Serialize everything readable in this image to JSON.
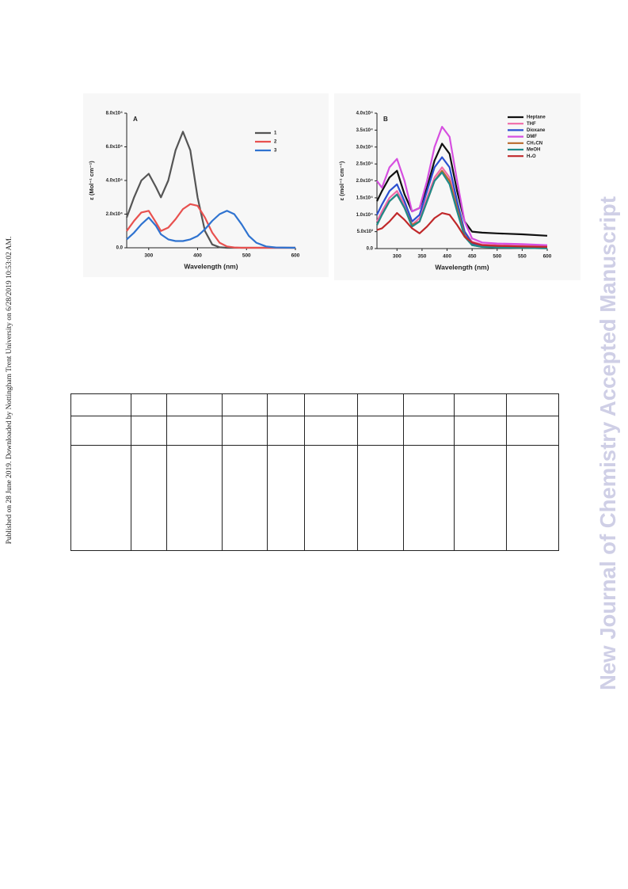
{
  "side_note": "Published on 28 June 2019. Downloaded by Nottingham Trent University on 6/28/2019 10:53:02 AM.",
  "watermark": "New Journal of Chemistry Accepted Manuscript",
  "chart_data": [
    {
      "type": "line",
      "panel_label": "A",
      "x_label": "Wavelength (nm)",
      "y_label": "ε (Mol⁻¹ cm⁻¹)",
      "x": [
        255,
        270,
        285,
        300,
        315,
        325,
        340,
        355,
        370,
        385,
        400,
        415,
        430,
        445,
        460,
        475,
        490,
        505,
        520,
        540,
        560,
        600
      ],
      "xlim": [
        255,
        600
      ],
      "xticks": [
        300,
        400,
        500,
        600
      ],
      "ylim": [
        0,
        80000
      ],
      "yticks": [
        {
          "value": 0,
          "label": "0.0"
        },
        {
          "value": 20000,
          "label": "2.0x10⁴"
        },
        {
          "value": 40000,
          "label": "4.0x10⁴"
        },
        {
          "value": 60000,
          "label": "6.0x10⁴"
        },
        {
          "value": 80000,
          "label": "8.0x10⁴"
        }
      ],
      "legend": "upper right",
      "series": [
        {
          "name": "1",
          "color": "#555555",
          "values": [
            18000,
            30000,
            40000,
            44000,
            36000,
            30000,
            40000,
            58000,
            69000,
            58000,
            30000,
            10000,
            2000,
            300,
            0,
            0,
            0,
            0,
            0,
            0,
            0,
            0
          ]
        },
        {
          "name": "2",
          "color": "#e8514f",
          "values": [
            10000,
            16000,
            21000,
            22000,
            15000,
            10000,
            12000,
            17000,
            23000,
            26000,
            25000,
            18000,
            9000,
            3000,
            800,
            200,
            0,
            0,
            0,
            0,
            0,
            0
          ]
        },
        {
          "name": "3",
          "color": "#2f73d0",
          "values": [
            5000,
            9000,
            14000,
            18000,
            13000,
            8000,
            5000,
            4000,
            4000,
            5000,
            7000,
            11000,
            16000,
            20000,
            22000,
            20000,
            14000,
            7000,
            3000,
            800,
            200,
            0
          ]
        }
      ]
    },
    {
      "type": "line",
      "panel_label": "B",
      "x_label": "Wavelength (nm)",
      "y_label": "ε (mol⁻¹ cm⁻¹)",
      "x": [
        260,
        270,
        285,
        300,
        315,
        330,
        345,
        360,
        375,
        390,
        405,
        420,
        435,
        450,
        470,
        500,
        550,
        600
      ],
      "xlim": [
        260,
        600
      ],
      "xticks": [
        300,
        350,
        400,
        450,
        500,
        550,
        600
      ],
      "ylim": [
        0,
        40000
      ],
      "yticks": [
        {
          "value": 0,
          "label": "0.0"
        },
        {
          "value": 5000,
          "label": "5.0x10³"
        },
        {
          "value": 10000,
          "label": "1.0x10⁴"
        },
        {
          "value": 15000,
          "label": "1.5x10⁴"
        },
        {
          "value": 20000,
          "label": "2.0x10⁴"
        },
        {
          "value": 25000,
          "label": "2.5x10⁴"
        },
        {
          "value": 30000,
          "label": "3.0x10⁴"
        },
        {
          "value": 35000,
          "label": "3.5x10⁴"
        },
        {
          "value": 40000,
          "label": "4.0x10⁴"
        }
      ],
      "legend": "upper right",
      "series": [
        {
          "name": "Heptane",
          "color": "#111111",
          "values": [
            14000,
            17000,
            21000,
            23000,
            16000,
            11000,
            12000,
            18000,
            26000,
            31000,
            28000,
            17000,
            8000,
            5000,
            4700,
            4500,
            4200,
            3800
          ]
        },
        {
          "name": "THF",
          "color": "#f06aa8",
          "values": [
            8000,
            11000,
            15000,
            17000,
            13000,
            7000,
            9000,
            15000,
            21000,
            24000,
            21000,
            13000,
            5000,
            2000,
            1200,
            1000,
            800,
            700
          ]
        },
        {
          "name": "Dioxane",
          "color": "#2a4fd0",
          "values": [
            10000,
            13000,
            17000,
            19000,
            14000,
            8000,
            10000,
            17000,
            24000,
            27000,
            24000,
            14000,
            5000,
            1500,
            800,
            600,
            500,
            400
          ]
        },
        {
          "name": "DMF",
          "color": "#d64fe0",
          "values": [
            20000,
            18000,
            24000,
            26500,
            20000,
            11000,
            12000,
            20000,
            30000,
            36000,
            33000,
            20000,
            8000,
            3000,
            1800,
            1500,
            1300,
            1000
          ]
        },
        {
          "name": "CH₃CN",
          "color": "#b8682a",
          "values": [
            7000,
            10000,
            14000,
            16000,
            12000,
            7000,
            8000,
            14000,
            20000,
            23000,
            20000,
            12000,
            4000,
            1000,
            500,
            300,
            200,
            100
          ]
        },
        {
          "name": "MeOH",
          "color": "#1f8a8a",
          "values": [
            7000,
            10000,
            14000,
            16000,
            12000,
            6500,
            8000,
            14000,
            20000,
            22500,
            19000,
            11000,
            3500,
            1000,
            500,
            300,
            200,
            100
          ]
        },
        {
          "name": "H₂O",
          "color": "#c0282a",
          "values": [
            5500,
            6000,
            8000,
            10500,
            8500,
            6000,
            4500,
            6500,
            9000,
            10500,
            10000,
            7000,
            3500,
            1800,
            1000,
            800,
            600,
            500
          ]
        }
      ]
    }
  ]
}
